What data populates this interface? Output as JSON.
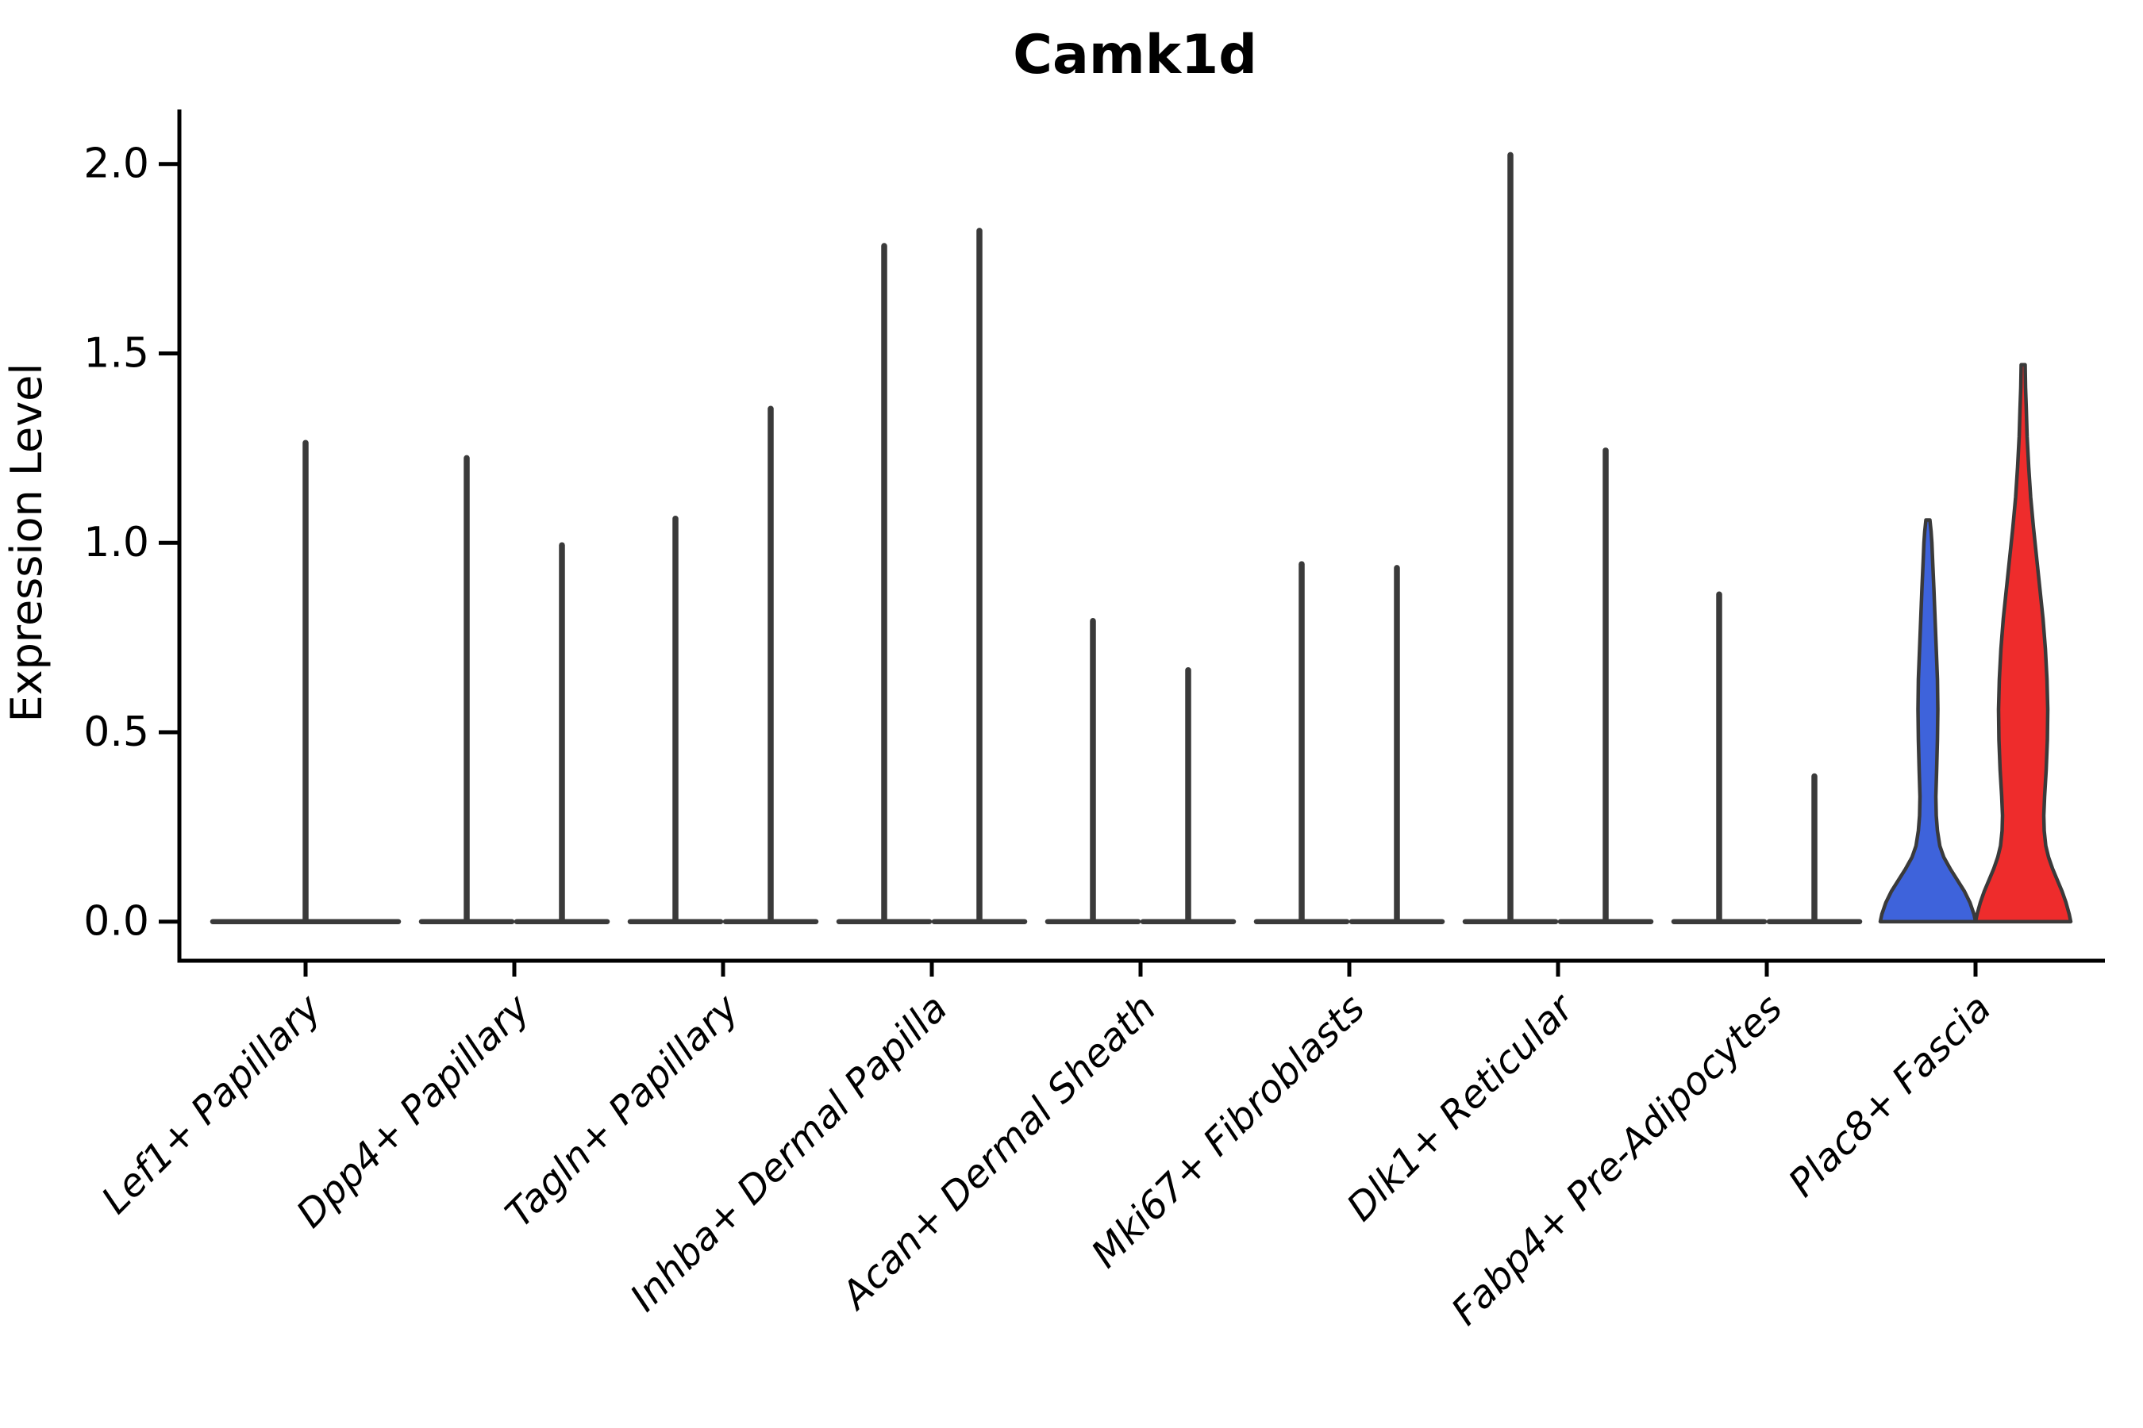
{
  "title": "Camk1d",
  "colors": {
    "background": "#ffffff",
    "violin_line": "#3a3a3a",
    "axis": "#000000",
    "fascia_blue": "#3e63db",
    "fascia_red": "#ee2c2c"
  },
  "chart_data": {
    "type": "violin",
    "title": "Camk1d",
    "xlabel": "",
    "ylabel": "Expression Level",
    "ylim": [
      0,
      2.15
    ],
    "yticks": [
      0.0,
      0.5,
      1.0,
      1.5,
      2.0
    ],
    "ytick_labels": [
      "0.0",
      "0.5",
      "1.0",
      "1.5",
      "2.0"
    ],
    "grid": false,
    "legend": "none",
    "categories": [
      "Lef1+ Papillary",
      "Dpp4+ Papillary",
      "Tagln+ Papillary",
      "Inhba+ Dermal Papilla",
      "Acan+ Dermal Sheath",
      "Mki67+ Fibroblasts",
      "Dlk1+ Reticular",
      "Fabp4+ Pre-Adipocytes",
      "Plac8+ Fascia"
    ],
    "groups": [
      {
        "label": "Lef1+ Papillary",
        "violins": [
          {
            "style": "spike",
            "max_expression": 1.27,
            "span": "full",
            "fill": null
          }
        ]
      },
      {
        "label": "Dpp4+ Papillary",
        "violins": [
          {
            "style": "spike",
            "max_expression": 1.23,
            "fill": null
          },
          {
            "style": "spike",
            "max_expression": 1.0,
            "fill": null
          }
        ]
      },
      {
        "label": "Tagln+ Papillary",
        "violins": [
          {
            "style": "spike",
            "max_expression": 1.07,
            "fill": null
          },
          {
            "style": "spike",
            "max_expression": 1.36,
            "fill": null
          }
        ]
      },
      {
        "label": "Inhba+ Dermal Papilla",
        "violins": [
          {
            "style": "spike",
            "max_expression": 1.79,
            "fill": null
          },
          {
            "style": "spike",
            "max_expression": 1.83,
            "fill": null
          }
        ]
      },
      {
        "label": "Acan+ Dermal Sheath",
        "violins": [
          {
            "style": "spike",
            "max_expression": 0.8,
            "fill": null
          },
          {
            "style": "spike",
            "max_expression": 0.67,
            "fill": null
          }
        ]
      },
      {
        "label": "Mki67+ Fibroblasts",
        "violins": [
          {
            "style": "spike",
            "max_expression": 0.95,
            "fill": null
          },
          {
            "style": "spike",
            "max_expression": 0.94,
            "fill": null
          }
        ]
      },
      {
        "label": "Dlk1+ Reticular",
        "violins": [
          {
            "style": "spike",
            "max_expression": 2.03,
            "fill": null
          },
          {
            "style": "spike",
            "max_expression": 1.25,
            "fill": null
          }
        ]
      },
      {
        "label": "Fabp4+ Pre-Adipocytes",
        "violins": [
          {
            "style": "spike",
            "max_expression": 0.87,
            "fill": null
          },
          {
            "style": "spike",
            "max_expression": 0.39,
            "fill": null
          }
        ]
      },
      {
        "label": "Plac8+ Fascia",
        "violins": [
          {
            "style": "filled",
            "max_expression": 1.06,
            "fill": "#3e63db",
            "profile": [
              [
                0,
                60
              ],
              [
                0.02,
                58
              ],
              [
                0.05,
                53
              ],
              [
                0.08,
                46
              ],
              [
                0.11,
                37
              ],
              [
                0.14,
                28
              ],
              [
                0.17,
                20
              ],
              [
                0.2,
                15
              ],
              [
                0.24,
                12
              ],
              [
                0.28,
                10.5
              ],
              [
                0.33,
                10
              ],
              [
                0.4,
                11
              ],
              [
                0.48,
                12
              ],
              [
                0.56,
                12.5
              ],
              [
                0.64,
                12
              ],
              [
                0.72,
                10.5
              ],
              [
                0.8,
                9
              ],
              [
                0.88,
                7.5
              ],
              [
                0.95,
                6
              ],
              [
                1.0,
                5
              ],
              [
                1.03,
                4
              ],
              [
                1.06,
                2.5
              ]
            ]
          },
          {
            "style": "filled",
            "max_expression": 1.47,
            "fill": "#ee2c2c",
            "profile": [
              [
                0,
                60
              ],
              [
                0.02,
                58
              ],
              [
                0.05,
                54
              ],
              [
                0.08,
                49
              ],
              [
                0.11,
                43
              ],
              [
                0.14,
                37
              ],
              [
                0.17,
                32
              ],
              [
                0.2,
                28.5
              ],
              [
                0.24,
                26.5
              ],
              [
                0.28,
                26
              ],
              [
                0.33,
                27
              ],
              [
                0.4,
                29
              ],
              [
                0.48,
                30.5
              ],
              [
                0.56,
                31
              ],
              [
                0.64,
                30
              ],
              [
                0.72,
                28
              ],
              [
                0.8,
                25
              ],
              [
                0.88,
                21
              ],
              [
                0.96,
                17
              ],
              [
                1.04,
                13
              ],
              [
                1.12,
                9.5
              ],
              [
                1.2,
                7
              ],
              [
                1.28,
                5
              ],
              [
                1.35,
                4
              ],
              [
                1.41,
                3
              ],
              [
                1.47,
                2.5
              ]
            ]
          }
        ]
      }
    ]
  }
}
